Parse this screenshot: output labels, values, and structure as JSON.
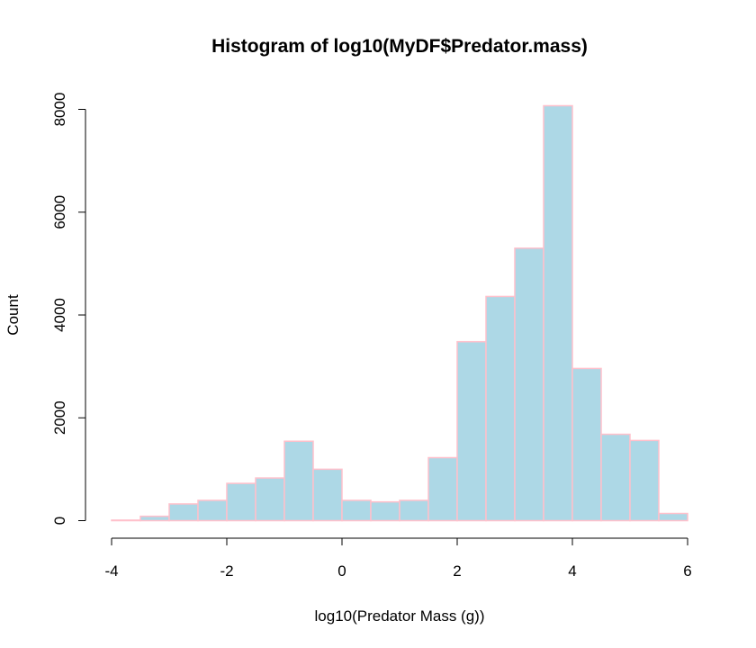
{
  "chart_data": {
    "type": "bar",
    "title": "Histogram of log10(MyDF$Predator.mass)",
    "xlabel": "log10(Predator Mass (g))",
    "ylabel": "Count",
    "bin_edges": [
      -4,
      -3.5,
      -3,
      -2.5,
      -2,
      -1.5,
      -1,
      -0.5,
      0,
      0.5,
      1,
      1.5,
      2,
      2.5,
      3,
      3.5,
      4,
      4.5,
      5,
      5.5,
      6
    ],
    "values": [
      10,
      85,
      325,
      395,
      725,
      830,
      1545,
      1000,
      395,
      365,
      395,
      1225,
      3480,
      4360,
      5300,
      8070,
      2960,
      1680,
      1560,
      140
    ],
    "xlim": [
      -4,
      6
    ],
    "ylim": [
      0,
      8000
    ],
    "xticks": [
      "-4",
      "-2",
      "0",
      "2",
      "4",
      "6"
    ],
    "xtick_values": [
      -4,
      -2,
      0,
      2,
      4,
      6
    ],
    "yticks": [
      "0",
      "2000",
      "4000",
      "6000",
      "8000"
    ],
    "ytick_values": [
      0,
      2000,
      4000,
      6000,
      8000
    ],
    "bar_fill": "#ADD8E6",
    "bar_border": "#FFC0CB",
    "grid": false
  }
}
